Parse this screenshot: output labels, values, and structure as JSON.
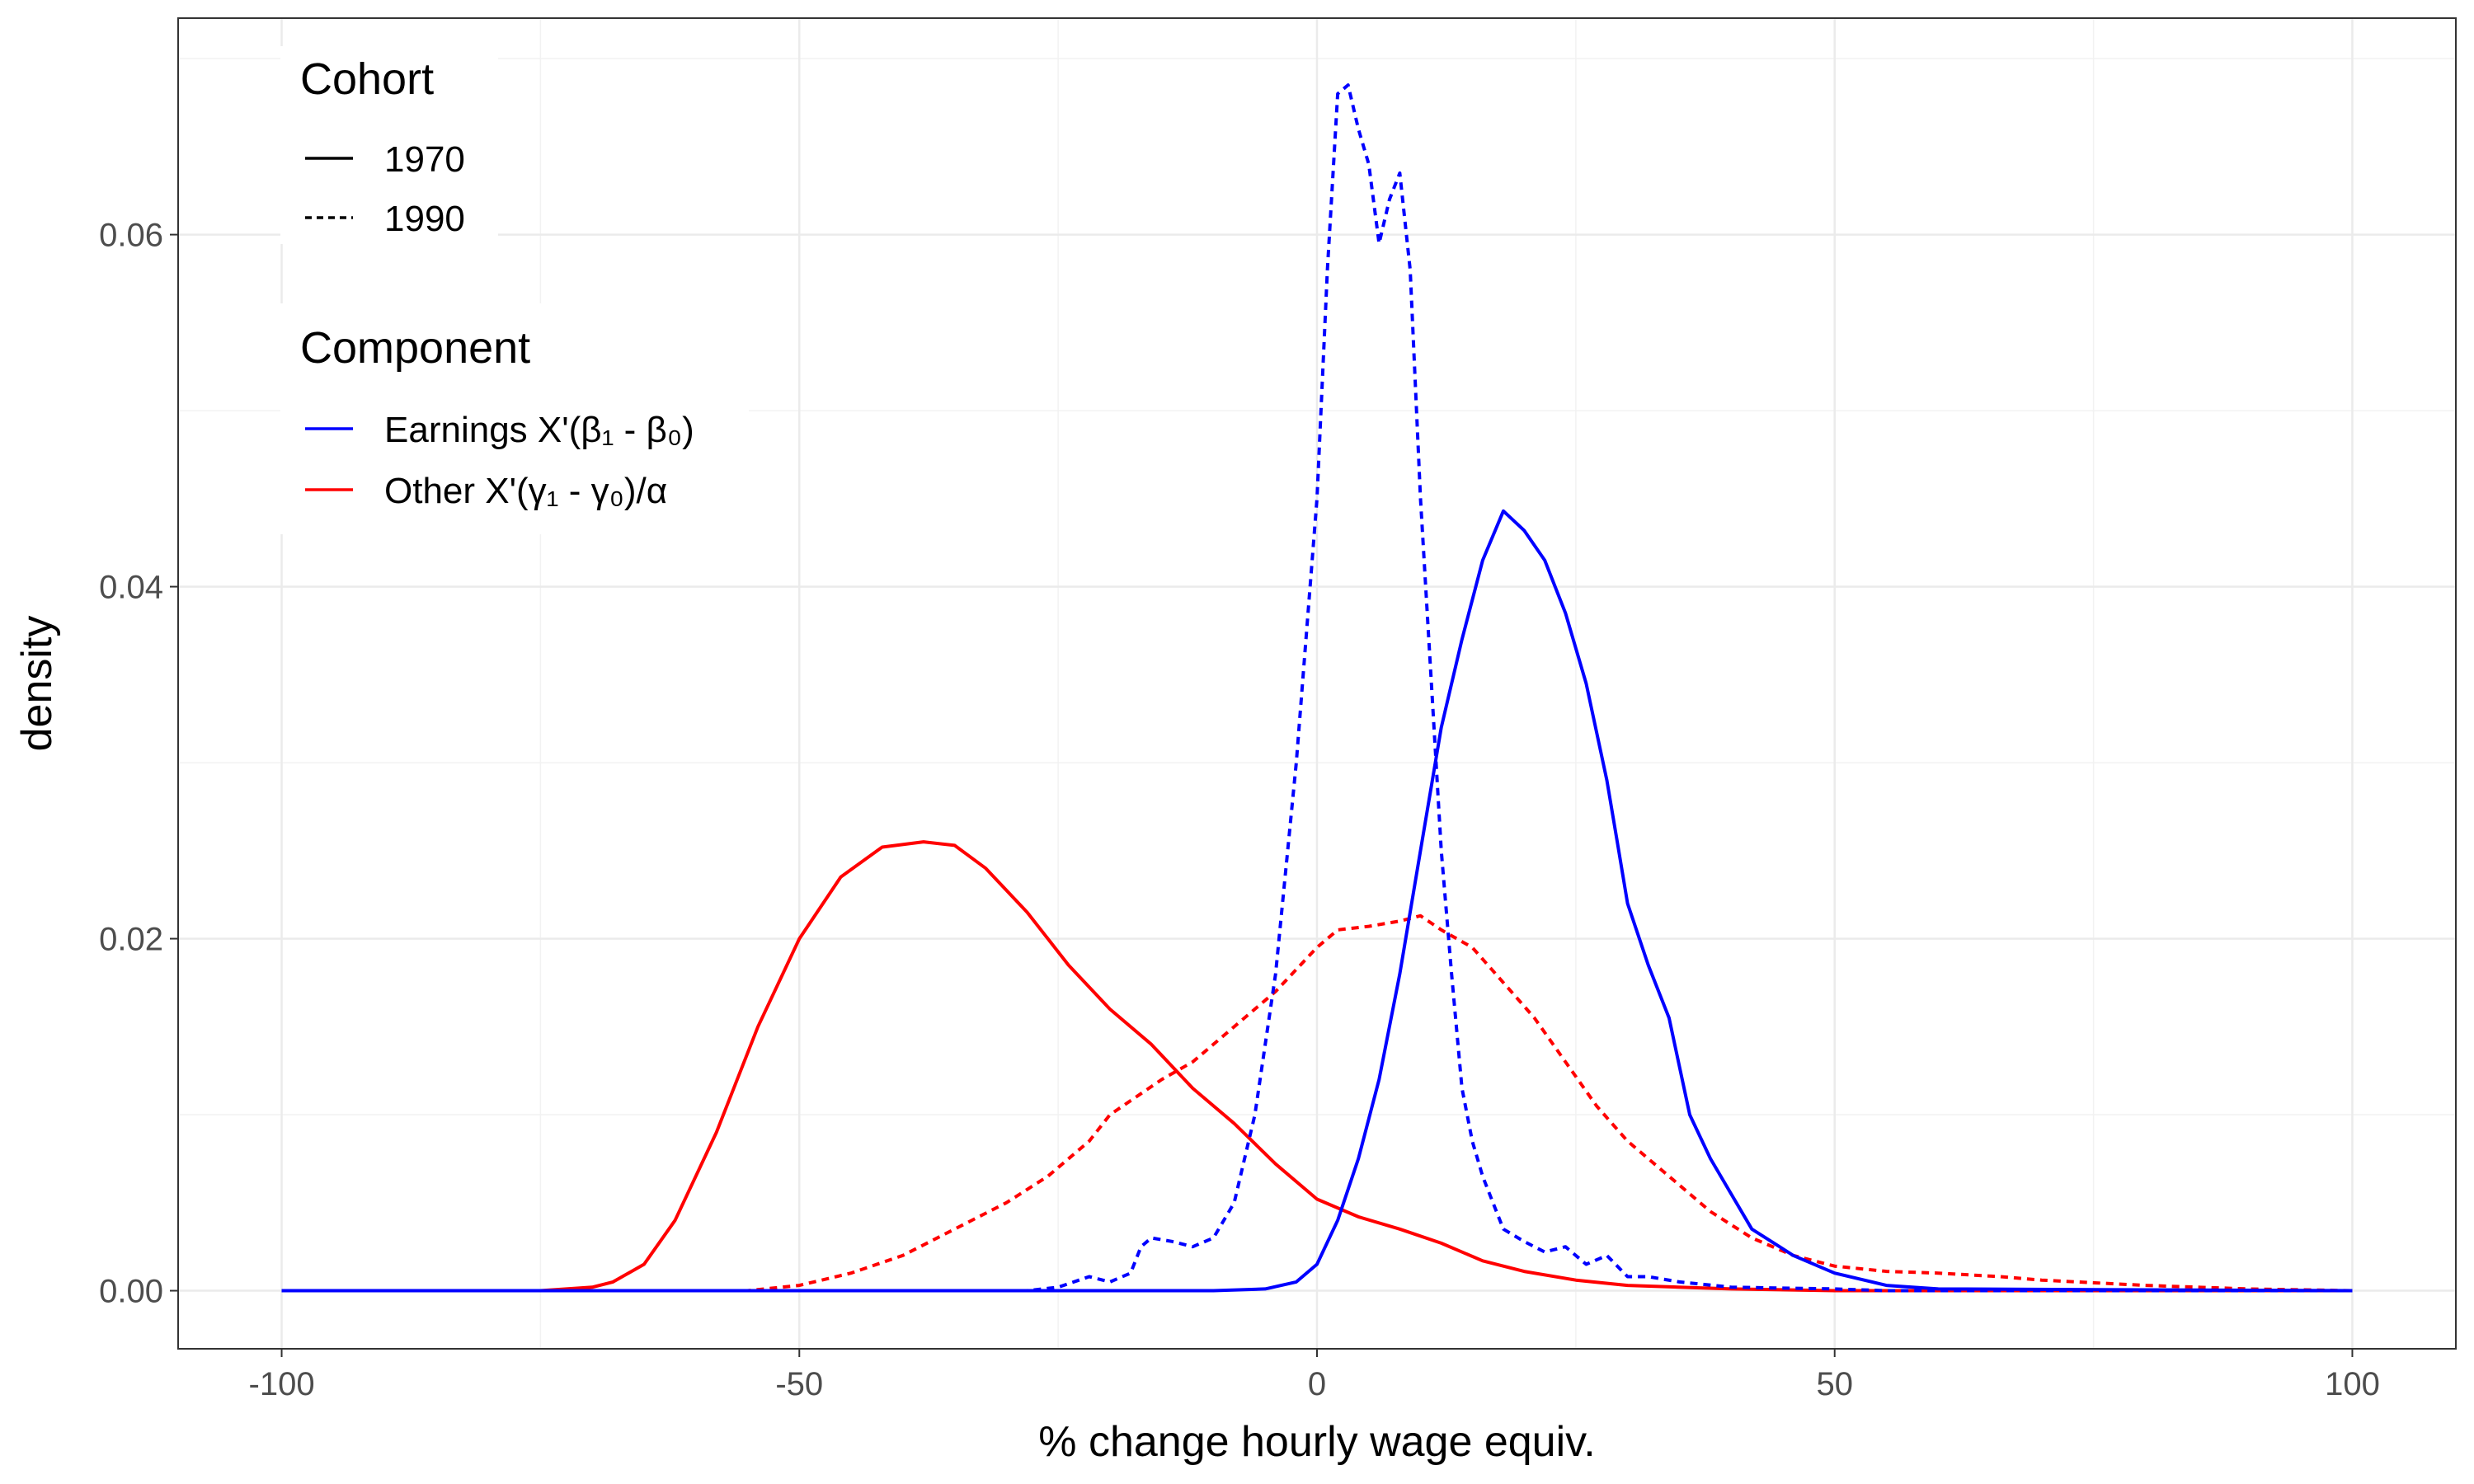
{
  "chart_data": {
    "type": "line",
    "title": "",
    "xlabel": "% change hourly wage equiv.",
    "ylabel": "density",
    "xlim": [
      -110,
      110
    ],
    "ylim": [
      -0.0033,
      0.0723
    ],
    "x_ticks": [
      -100,
      -50,
      0,
      50,
      100
    ],
    "x_tick_labels": [
      "-100",
      "-50",
      "0",
      "50",
      "100"
    ],
    "y_ticks": [
      0.0,
      0.02,
      0.04,
      0.06
    ],
    "y_tick_labels": [
      "0.00",
      "0.02",
      "0.04",
      "0.06"
    ],
    "grid": true,
    "legend_placement": "top-left",
    "legends": [
      {
        "title": "Cohort",
        "entries": [
          {
            "label": "1970",
            "linetype": "solid"
          },
          {
            "label": "1990",
            "linetype": "dashed"
          }
        ]
      },
      {
        "title": "Component",
        "entries": [
          {
            "label": "Earnings X'(β₁ - β₀)",
            "color": "#0000ff"
          },
          {
            "label": "Other X'(γ₁ - γ₀)/α",
            "color": "#ff0000"
          }
        ]
      }
    ],
    "series": [
      {
        "component": "Earnings X'(β₁ - β₀)",
        "cohort": "1970",
        "color": "#0000ff",
        "linetype": "solid",
        "points": [
          [
            -100,
            0
          ],
          [
            -10,
            0
          ],
          [
            -5,
            0.0001
          ],
          [
            -2,
            0.0005
          ],
          [
            0,
            0.0015
          ],
          [
            2,
            0.004
          ],
          [
            4,
            0.0075
          ],
          [
            6,
            0.012
          ],
          [
            8,
            0.018
          ],
          [
            10,
            0.025
          ],
          [
            12,
            0.032
          ],
          [
            14,
            0.037
          ],
          [
            16,
            0.0415
          ],
          [
            18,
            0.0443
          ],
          [
            20,
            0.0432
          ],
          [
            22,
            0.0415
          ],
          [
            24,
            0.0385
          ],
          [
            26,
            0.0345
          ],
          [
            28,
            0.029
          ],
          [
            29,
            0.0255
          ],
          [
            30,
            0.022
          ],
          [
            32,
            0.0185
          ],
          [
            34,
            0.0155
          ],
          [
            36,
            0.01
          ],
          [
            38,
            0.0075
          ],
          [
            40,
            0.0055
          ],
          [
            42,
            0.0035
          ],
          [
            46,
            0.002
          ],
          [
            50,
            0.001
          ],
          [
            55,
            0.0003
          ],
          [
            60,
            0.0001
          ],
          [
            100,
            0
          ]
        ]
      },
      {
        "component": "Earnings X'(β₁ - β₀)",
        "cohort": "1990",
        "color": "#0000ff",
        "linetype": "dashed",
        "points": [
          [
            -100,
            0
          ],
          [
            -28,
            0
          ],
          [
            -25,
            0.0002
          ],
          [
            -22,
            0.0008
          ],
          [
            -20,
            0.0005
          ],
          [
            -18,
            0.001
          ],
          [
            -17,
            0.0025
          ],
          [
            -16,
            0.003
          ],
          [
            -14,
            0.0028
          ],
          [
            -12,
            0.0025
          ],
          [
            -10,
            0.003
          ],
          [
            -8,
            0.005
          ],
          [
            -6,
            0.01
          ],
          [
            -4,
            0.018
          ],
          [
            -2,
            0.03
          ],
          [
            0,
            0.045
          ],
          [
            1,
            0.058
          ],
          [
            2,
            0.068
          ],
          [
            3,
            0.0685
          ],
          [
            4,
            0.066
          ],
          [
            5,
            0.064
          ],
          [
            6,
            0.0595
          ],
          [
            7,
            0.062
          ],
          [
            8,
            0.0635
          ],
          [
            9,
            0.058
          ],
          [
            10,
            0.045
          ],
          [
            11,
            0.035
          ],
          [
            12,
            0.025
          ],
          [
            13,
            0.018
          ],
          [
            14,
            0.0115
          ],
          [
            15,
            0.0085
          ],
          [
            16,
            0.0065
          ],
          [
            17,
            0.005
          ],
          [
            18,
            0.0035
          ],
          [
            20,
            0.0028
          ],
          [
            22,
            0.0022
          ],
          [
            24,
            0.0025
          ],
          [
            26,
            0.0015
          ],
          [
            28,
            0.002
          ],
          [
            30,
            0.0008
          ],
          [
            32,
            0.0008
          ],
          [
            35,
            0.0005
          ],
          [
            40,
            0.0002
          ],
          [
            50,
            0.0001
          ],
          [
            55,
            0
          ],
          [
            100,
            0
          ]
        ]
      },
      {
        "component": "Other X'(γ₁ - γ₀)/α",
        "cohort": "1970",
        "color": "#ff0000",
        "linetype": "solid",
        "points": [
          [
            -100,
            0
          ],
          [
            -75,
            0
          ],
          [
            -70,
            0.0002
          ],
          [
            -68,
            0.0005
          ],
          [
            -65,
            0.0015
          ],
          [
            -62,
            0.004
          ],
          [
            -58,
            0.009
          ],
          [
            -54,
            0.015
          ],
          [
            -50,
            0.02
          ],
          [
            -46,
            0.0235
          ],
          [
            -42,
            0.0252
          ],
          [
            -38,
            0.0255
          ],
          [
            -35,
            0.0253
          ],
          [
            -32,
            0.024
          ],
          [
            -28,
            0.0215
          ],
          [
            -24,
            0.0185
          ],
          [
            -20,
            0.016
          ],
          [
            -16,
            0.014
          ],
          [
            -12,
            0.0115
          ],
          [
            -8,
            0.0095
          ],
          [
            -4,
            0.0072
          ],
          [
            0,
            0.0052
          ],
          [
            4,
            0.0042
          ],
          [
            8,
            0.0035
          ],
          [
            12,
            0.0027
          ],
          [
            16,
            0.0017
          ],
          [
            20,
            0.0011
          ],
          [
            25,
            0.0006
          ],
          [
            30,
            0.0003
          ],
          [
            40,
            0.0001
          ],
          [
            50,
            0
          ],
          [
            100,
            0
          ]
        ]
      },
      {
        "component": "Other X'(γ₁ - γ₀)/α",
        "cohort": "1990",
        "color": "#ff0000",
        "linetype": "dashed",
        "points": [
          [
            -100,
            0
          ],
          [
            -55,
            0
          ],
          [
            -50,
            0.0003
          ],
          [
            -45,
            0.001
          ],
          [
            -40,
            0.002
          ],
          [
            -35,
            0.0035
          ],
          [
            -30,
            0.005
          ],
          [
            -26,
            0.0065
          ],
          [
            -22,
            0.0085
          ],
          [
            -20,
            0.01
          ],
          [
            -15,
            0.012
          ],
          [
            -12,
            0.013
          ],
          [
            -8,
            0.015
          ],
          [
            -4,
            0.017
          ],
          [
            0,
            0.0195
          ],
          [
            2,
            0.0205
          ],
          [
            5,
            0.0207
          ],
          [
            8,
            0.021
          ],
          [
            10,
            0.0213
          ],
          [
            12,
            0.0205
          ],
          [
            15,
            0.0195
          ],
          [
            18,
            0.0175
          ],
          [
            21,
            0.0155
          ],
          [
            24,
            0.013
          ],
          [
            27,
            0.0105
          ],
          [
            30,
            0.0085
          ],
          [
            34,
            0.0065
          ],
          [
            38,
            0.0045
          ],
          [
            42,
            0.003
          ],
          [
            46,
            0.002
          ],
          [
            50,
            0.0014
          ],
          [
            55,
            0.0011
          ],
          [
            60,
            0.001
          ],
          [
            66,
            0.0008
          ],
          [
            70,
            0.0006
          ],
          [
            80,
            0.0003
          ],
          [
            90,
            0.0001
          ],
          [
            100,
            0
          ]
        ]
      }
    ]
  }
}
